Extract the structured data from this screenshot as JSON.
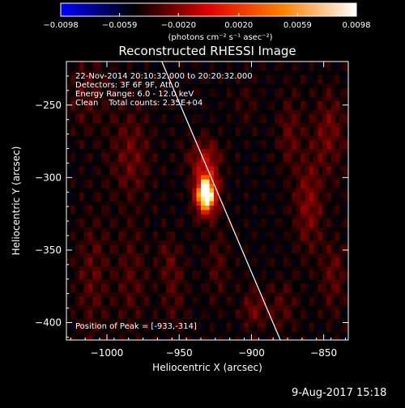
{
  "chart_data": {
    "type": "heatmap",
    "title": "Reconstructed RHESSI Image",
    "xlabel": "Heliocentric X (arcsec)",
    "ylabel": "Heliocentric Y (arcsec)",
    "xlim": [
      -1028,
      -833
    ],
    "ylim": [
      -412,
      -220
    ],
    "x_ticks": [
      -1000,
      -950,
      -900,
      -850
    ],
    "x_tick_labels": [
      "−1000",
      "−950",
      "−900",
      "−850"
    ],
    "y_ticks": [
      -250,
      -300,
      -350,
      -400
    ],
    "y_tick_labels": [
      "−250",
      "−300",
      "−350",
      "−400"
    ],
    "colorbar": {
      "min": -0.0098,
      "max": 0.0098,
      "ticks": [
        -0.0098,
        -0.0059,
        -0.002,
        0.002,
        0.0059,
        0.0098
      ],
      "tick_labels": [
        "−0.0098",
        "−0.0059",
        "−0.0020",
        "0.0020",
        "0.0059",
        "0.0098"
      ],
      "units": "(photons cm⁻² s⁻¹ asec⁻²)",
      "colors": [
        "#0000ff",
        "#000000",
        "#e00000",
        "#ff8000",
        "#ffffff"
      ]
    },
    "annotations": [
      "22-Nov-2014 20:10:32.000 to 20:20:32.000",
      "Detectors: 3F 6F 9F, Att 0",
      "Energy Range: 6.0 - 12.0 keV",
      "Clean    Total counts: 2.35E+04"
    ],
    "peak_label": "Position of Peak = [-933,-314]",
    "peak": {
      "x": -933,
      "y": -314
    },
    "limb_line": [
      {
        "x": -962,
        "y": -220
      },
      {
        "x": -880,
        "y": -412
      }
    ],
    "sources": [
      {
        "x": -933,
        "y": -314,
        "sx": 5,
        "sy": 9,
        "amp": 1.0
      },
      {
        "x": -933,
        "y": -300,
        "sx": 6,
        "sy": 12,
        "amp": 0.35
      },
      {
        "x": -935,
        "y": -285,
        "sx": 10,
        "sy": 8,
        "amp": 0.2
      },
      {
        "x": -985,
        "y": -285,
        "sx": 10,
        "sy": 22,
        "amp": 0.22
      },
      {
        "x": -1012,
        "y": -370,
        "sx": 8,
        "sy": 30,
        "amp": 0.18
      },
      {
        "x": -985,
        "y": -370,
        "sx": 8,
        "sy": 25,
        "amp": 0.16
      },
      {
        "x": -955,
        "y": -380,
        "sx": 6,
        "sy": 18,
        "amp": 0.16
      },
      {
        "x": -925,
        "y": -360,
        "sx": 6,
        "sy": 18,
        "amp": 0.15
      },
      {
        "x": -900,
        "y": -392,
        "sx": 6,
        "sy": 10,
        "amp": 0.22
      },
      {
        "x": -862,
        "y": -320,
        "sx": 7,
        "sy": 22,
        "amp": 0.28
      },
      {
        "x": -848,
        "y": -270,
        "sx": 8,
        "sy": 20,
        "amp": 0.24
      },
      {
        "x": -875,
        "y": -270,
        "sx": 6,
        "sy": 18,
        "amp": 0.2
      },
      {
        "x": -845,
        "y": -370,
        "sx": 6,
        "sy": 18,
        "amp": 0.2
      },
      {
        "x": -880,
        "y": -390,
        "sx": 8,
        "sy": 12,
        "amp": 0.16
      },
      {
        "x": -1015,
        "y": -245,
        "sx": 10,
        "sy": 20,
        "amp": 0.14
      },
      {
        "x": -905,
        "y": -250,
        "sx": 6,
        "sy": 12,
        "amp": 0.1
      },
      {
        "x": -960,
        "y": -355,
        "sx": 5,
        "sy": 10,
        "amp": 0.14
      }
    ]
  },
  "footer": {
    "date_stamp": "9-Aug-2017 15:18"
  }
}
